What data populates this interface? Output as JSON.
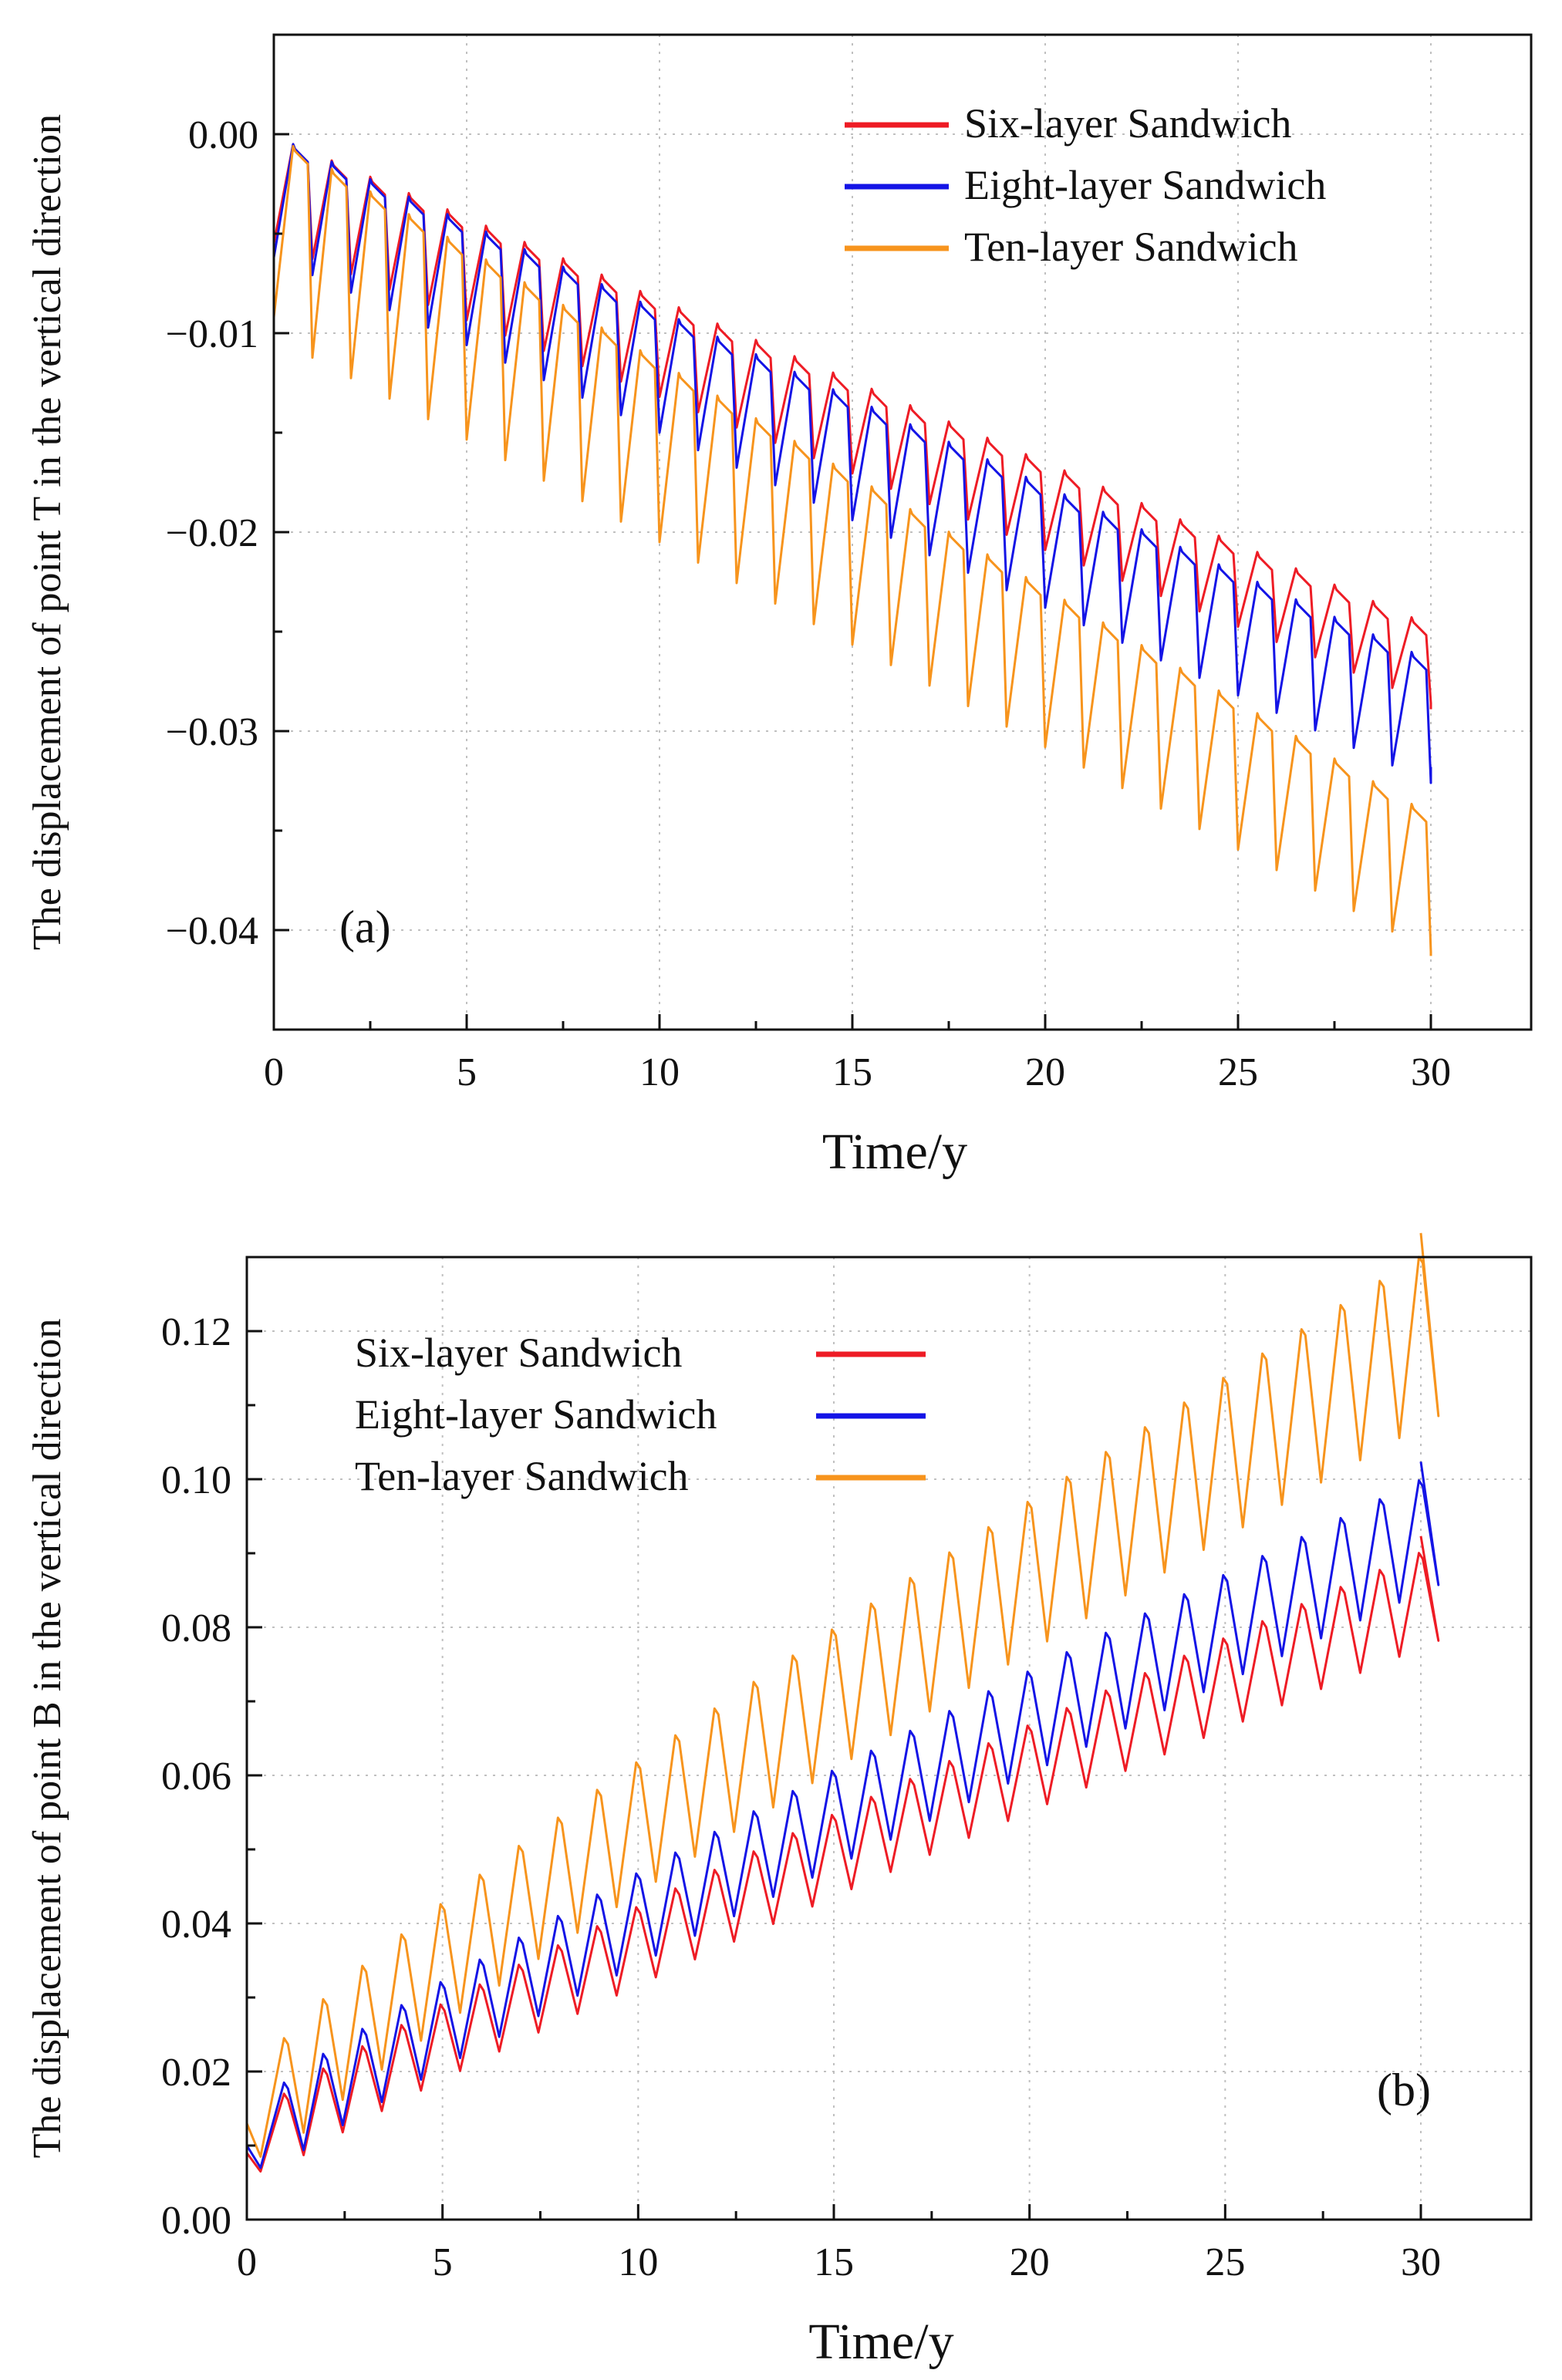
{
  "colors": {
    "six": "#ee1c25",
    "eight": "#1414e6",
    "ten": "#f7941d",
    "axis": "#111111",
    "grid": "#c0c0c0"
  },
  "chart_data": [
    {
      "id": "a",
      "type": "line",
      "panel_label": "(a)",
      "xlabel": "Time/y",
      "ylabel": "The displacement of point T in the vertical direction",
      "xlim": [
        0,
        32.7
      ],
      "ylim": [
        -0.045,
        0.005
      ],
      "xticks": [
        0,
        5,
        10,
        15,
        20,
        25,
        30
      ],
      "xtick_labels": [
        "0",
        "5",
        "10",
        "15",
        "20",
        "25",
        "30"
      ],
      "yticks": [
        0.0,
        -0.01,
        -0.02,
        -0.03,
        -0.04
      ],
      "ytick_labels": [
        "0.00",
        "−0.01",
        "−0.02",
        "−0.03",
        "−0.04"
      ],
      "grid": true,
      "legend_position": "top-right",
      "legend_swatch_side": "left",
      "series": [
        {
          "name": "Six-layer Sandwich",
          "color_key": "six",
          "start": -0.0055,
          "peak0": -0.0005,
          "peak_slope": -0.00082,
          "trough0": -0.0055,
          "trough_slope": -0.00077,
          "end": -0.0289,
          "x": [],
          "y": []
        },
        {
          "name": "Eight-layer Sandwich",
          "color_key": "eight",
          "start": -0.0062,
          "peak0": -0.0005,
          "peak_slope": -0.00088,
          "trough0": -0.0062,
          "trough_slope": -0.00088,
          "end": -0.0318,
          "x": [],
          "y": []
        },
        {
          "name": "Ten-layer Sandwich",
          "color_key": "ten",
          "start": -0.0092,
          "peak0": -0.0006,
          "peak_slope": -0.00114,
          "trough0": -0.0102,
          "trough_slope": -0.00103,
          "end": -0.0413,
          "x": [],
          "y": []
        }
      ]
    },
    {
      "id": "b",
      "type": "line",
      "panel_label": "(b)",
      "xlabel": "Time/y",
      "ylabel": "The displacement of point B in the vertical direction",
      "xlim": [
        0,
        33.5
      ],
      "ylim": [
        0,
        0.13
      ],
      "xticks": [
        0,
        5,
        10,
        15,
        20,
        25,
        30
      ],
      "xtick_labels": [
        "0",
        "5",
        "10",
        "15",
        "20",
        "25",
        "30"
      ],
      "yticks": [
        0.0,
        0.02,
        0.04,
        0.06,
        0.08,
        0.1,
        0.12
      ],
      "ytick_labels": [
        "0.00",
        "0.02",
        "0.04",
        "0.06",
        "0.08",
        "0.10",
        "0.12"
      ],
      "grid": true,
      "legend_position": "top-left",
      "legend_swatch_side": "right",
      "series": [
        {
          "name": "Six-layer Sandwich",
          "color_key": "six",
          "start": 0.009,
          "peak0": 0.017,
          "peak_rate": 0.0022,
          "peak_exp": 0.91,
          "trough0": 0.0065,
          "trough_rate": 0.0024,
          "trough_exp": 0.893,
          "x": [],
          "y": []
        },
        {
          "name": "Eight-layer Sandwich",
          "color_key": "eight",
          "start": 0.01,
          "peak0": 0.0185,
          "peak_rate": 0.0025,
          "peak_exp": 0.904,
          "trough0": 0.007,
          "trough_rate": 0.0026,
          "trough_exp": 0.897,
          "x": [],
          "y": []
        },
        {
          "name": "Ten-layer Sandwich",
          "color_key": "ten",
          "start": 0.013,
          "peak0": 0.0245,
          "peak_rate": 0.0034,
          "peak_exp": 0.89,
          "trough0": 0.0085,
          "trough_rate": 0.0035,
          "trough_exp": 0.88,
          "x": [],
          "y": []
        }
      ]
    }
  ]
}
